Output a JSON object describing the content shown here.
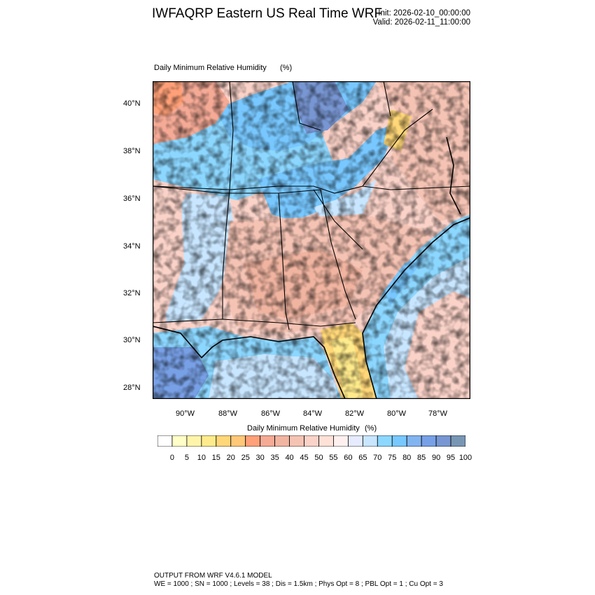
{
  "header": {
    "title": "IWFAQRP Eastern US Real Time WRF",
    "init": "Init: 2026-02-10_00:00:00",
    "valid": "Valid: 2026-02-11_11:00:00"
  },
  "plot": {
    "title": "Daily Minimum Relative Humidity",
    "units": "(%)"
  },
  "axes": {
    "lat_labels": [
      "40°N",
      "38°N",
      "36°N",
      "34°N",
      "32°N",
      "30°N",
      "28°N"
    ],
    "lon_labels": [
      "90°W",
      "88°W",
      "86°W",
      "84°W",
      "82°W",
      "80°W",
      "78°W"
    ]
  },
  "colorbar": {
    "title": "Daily Minimum Relative Humidity",
    "units": "(%)",
    "labels": [
      "0",
      "5",
      "10",
      "15",
      "20",
      "25",
      "30",
      "35",
      "40",
      "45",
      "50",
      "55",
      "60",
      "65",
      "70",
      "75",
      "80",
      "85",
      "90",
      "95",
      "100"
    ],
    "colors": [
      "#ffffff",
      "#ffffc8",
      "#fff5aa",
      "#ffeb8c",
      "#ffd778",
      "#ffc878",
      "#ffa078",
      "#f5aa96",
      "#f0b4a0",
      "#f5c3b4",
      "#fad2c8",
      "#ffe1d7",
      "#fff0f0",
      "#e6ebff",
      "#c8e6ff",
      "#8cd7ff",
      "#78c8ff",
      "#82b4f0",
      "#78a0e6",
      "#7896d2",
      "#7896b4"
    ]
  },
  "footer": {
    "line1": "OUTPUT FROM WRF V4.6.1 MODEL",
    "line2": "WE = 1000 ; SN = 1000 ; Levels = 38 ; Dis = 1.5km ; Phys Opt = 8 ; PBL Opt = 1 ; Cu Opt = 3"
  }
}
